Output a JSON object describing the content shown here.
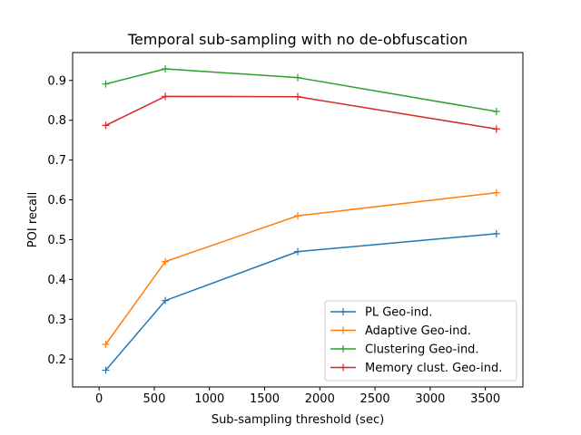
{
  "chart_data": {
    "type": "line",
    "title": "Temporal sub-sampling with no de-obfuscation",
    "xlabel": "Sub-sampling threshold (sec)",
    "ylabel": "POI recall",
    "xlim": [
      -240,
      3840
    ],
    "ylim": [
      0.13,
      0.97
    ],
    "grid": false,
    "legend_position": "lower-right",
    "x_ticks": [
      0,
      500,
      1000,
      1500,
      2000,
      2500,
      3000,
      3500
    ],
    "x_tick_labels": [
      "0",
      "500",
      "1000",
      "1500",
      "2000",
      "2500",
      "3000",
      "3500"
    ],
    "y_ticks": [
      0.2,
      0.3,
      0.4,
      0.5,
      0.6,
      0.7,
      0.8,
      0.9
    ],
    "y_tick_labels": [
      "0.2",
      "0.3",
      "0.4",
      "0.5",
      "0.6",
      "0.7",
      "0.8",
      "0.9"
    ],
    "x": [
      60,
      600,
      1800,
      3600
    ],
    "series": [
      {
        "name": "PL Geo-ind.",
        "color": "#1f77b4",
        "marker": "plus",
        "values": [
          0.172,
          0.347,
          0.47,
          0.515
        ]
      },
      {
        "name": "Adaptive Geo-ind.",
        "color": "#ff7f0e",
        "marker": "plus",
        "values": [
          0.237,
          0.445,
          0.56,
          0.618
        ]
      },
      {
        "name": "Clustering Geo-ind.",
        "color": "#2ca02c",
        "marker": "plus",
        "values": [
          0.891,
          0.929,
          0.907,
          0.822
        ]
      },
      {
        "name": "Memory clust. Geo-ind.",
        "color": "#d62728",
        "marker": "plus",
        "values": [
          0.787,
          0.86,
          0.859,
          0.778
        ]
      }
    ]
  }
}
